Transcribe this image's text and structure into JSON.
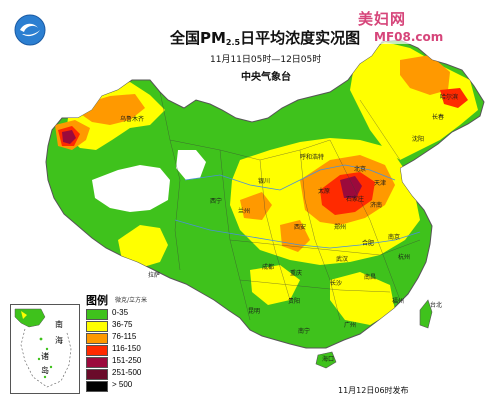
{
  "header": {
    "title_main": "全国PM",
    "title_sub": "2.5",
    "title_tail": "日平均浓度实况图",
    "period": "11月11日05时—12日05时",
    "organization": "中央气象台"
  },
  "watermark": {
    "name": "美妇网",
    "site": "MF08.com"
  },
  "logo": {
    "icon": "cma-weather-logo-icon"
  },
  "legend": {
    "title": "图例",
    "unit": "微克/立方米",
    "items": [
      {
        "label": "0-35",
        "color": "#3fc21c"
      },
      {
        "label": "36-75",
        "color": "#ffff00"
      },
      {
        "label": "76-115",
        "color": "#ff9900"
      },
      {
        "label": "116-150",
        "color": "#ff2a00"
      },
      {
        "label": "151-250",
        "color": "#9b0a3c"
      },
      {
        "label": "251-500",
        "color": "#6a0b2a"
      },
      {
        "label": "> 500",
        "color": "#000000"
      }
    ]
  },
  "inset": {
    "label_1": "南",
    "label_2": "海",
    "label_3": "诸",
    "label_4": "岛"
  },
  "cities": {
    "urumqi": "乌鲁木齐",
    "harbin": "哈尔滨",
    "changchun": "长春",
    "shenyang": "沈阳",
    "hohhot": "呼和浩特",
    "beijing": "北京",
    "tianjin": "天津",
    "yinchuan": "银川",
    "taiyuan": "太原",
    "shijiazhuang": "石家庄",
    "jinan": "济南",
    "xining": "西宁",
    "lanzhou": "兰州",
    "xian": "西安",
    "zhengzhou": "郑州",
    "hefei": "合肥",
    "nanjing": "南京",
    "lhasa": "拉萨",
    "chengdu": "成都",
    "wuhan": "武汉",
    "chongqing": "重庆",
    "changsha": "长沙",
    "nanchang": "南昌",
    "hangzhou": "杭州",
    "guiyang": "贵阳",
    "kunming": "昆明",
    "fuzhou": "福州",
    "nanning": "南宁",
    "guangzhou": "广州",
    "taipei": "台北",
    "haikou": "海口"
  },
  "release_time": "11月12日06时发布"
}
